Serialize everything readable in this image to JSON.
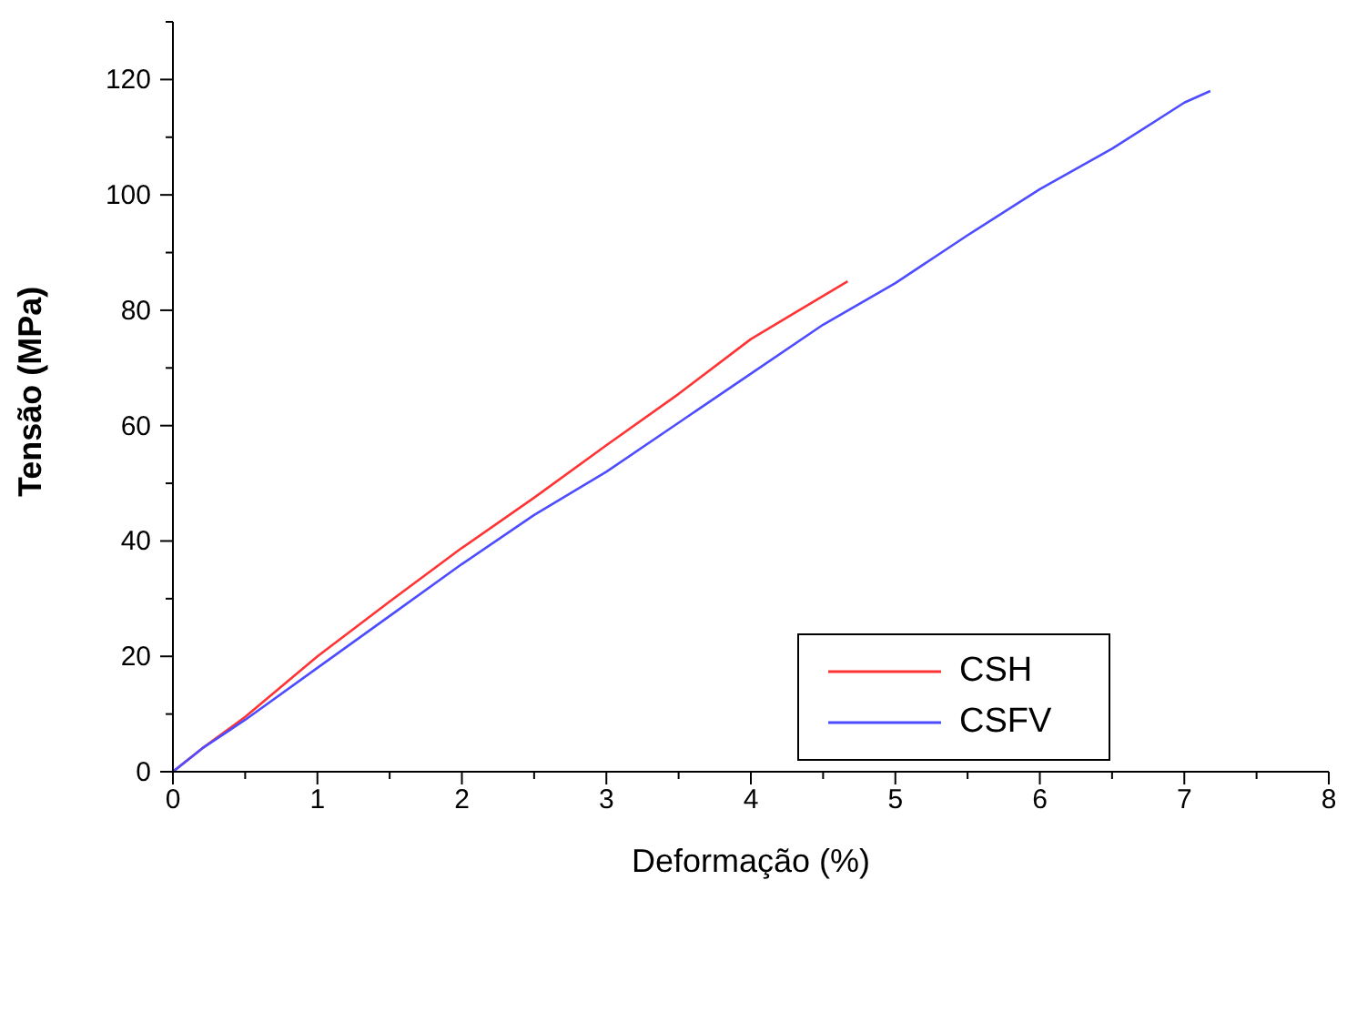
{
  "chart_data": {
    "type": "line",
    "xlabel": "Deformação (%)",
    "ylabel": "Tensão (MPa)",
    "series": [
      {
        "name": "CSH",
        "color": "#ff3333",
        "x": [
          0,
          0.2,
          0.5,
          1,
          1.5,
          2,
          2.5,
          3,
          3.5,
          4,
          4.3,
          4.67
        ],
        "values": [
          0,
          4,
          9.5,
          20,
          29.5,
          38.8,
          47.5,
          56.6,
          65.5,
          75,
          79.5,
          85
        ]
      },
      {
        "name": "CSFV",
        "color": "#4d4dff",
        "x": [
          0,
          0.2,
          0.5,
          1,
          1.5,
          2,
          2.5,
          3,
          3.5,
          4,
          4.5,
          5,
          5.5,
          6,
          6.5,
          7,
          7.18
        ],
        "values": [
          0,
          4,
          9,
          18,
          27,
          36,
          44.5,
          52,
          60.5,
          69,
          77.5,
          84.7,
          93,
          101,
          108,
          116,
          118
        ]
      }
    ],
    "xlim": [
      0,
      8
    ],
    "xticks": [
      0,
      {
        "value": 0.5,
        "label": null
      },
      1,
      {
        "value": 1.5,
        "label": null
      },
      2,
      {
        "value": 2.5,
        "label": null
      },
      3,
      {
        "value": 3.5,
        "label": null
      },
      4,
      {
        "value": 4.5,
        "label": null
      },
      5,
      {
        "value": 5.5,
        "label": null
      },
      6,
      {
        "value": 6.5,
        "label": null
      },
      7,
      {
        "value": 7.5,
        "label": null
      },
      8
    ],
    "ylim": [
      0,
      130
    ],
    "yticks": [
      0,
      {
        "value": 10,
        "label": null
      },
      20,
      {
        "value": 30,
        "label": null
      },
      40,
      {
        "value": 50,
        "label": null
      },
      60,
      {
        "value": 70,
        "label": null
      },
      80,
      {
        "value": 90,
        "label": null
      },
      100,
      {
        "value": 110,
        "label": null
      },
      120,
      {
        "value": 130,
        "label": null
      }
    ],
    "grid": false,
    "legend": "center right",
    "marker": "none",
    "line_style": "solid"
  }
}
